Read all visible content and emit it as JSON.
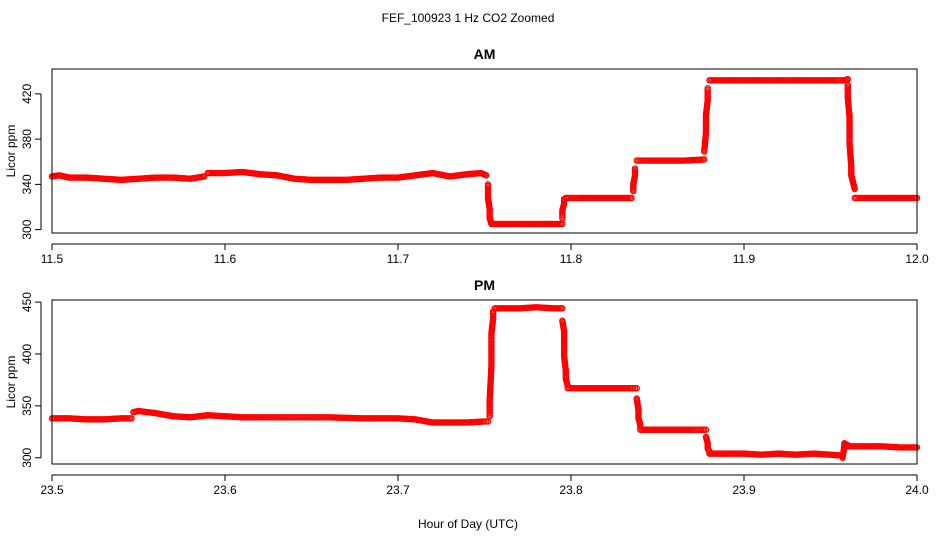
{
  "figure": {
    "title": "FEF_100923  1 Hz CO2 Zoomed",
    "xlabel": "Hour of Day (UTC)"
  },
  "colors": {
    "points": "#ff0000",
    "axis": "#000000"
  },
  "chart_data": [
    {
      "type": "scatter",
      "title": "AM",
      "ylabel": "Licor ppm",
      "xlim": [
        11.5,
        12.0
      ],
      "ylim": [
        297,
        442
      ],
      "x_ticks": [
        11.5,
        11.6,
        11.7,
        11.8,
        11.9,
        12.0
      ],
      "x_tick_labels": [
        "11.5",
        "11.6",
        "11.7",
        "11.8",
        "11.9",
        "12.0"
      ],
      "y_ticks": [
        300,
        340,
        380,
        420
      ],
      "y_tick_labels": [
        "300",
        "340",
        "380",
        "420"
      ],
      "marker": "open-circle",
      "segments": [
        {
          "x": [
            11.5,
            11.504,
            11.51,
            11.52,
            11.53,
            11.54,
            11.55,
            11.56,
            11.57,
            11.58,
            11.588
          ],
          "y": [
            347,
            348,
            346,
            346,
            345,
            344,
            345,
            346,
            346,
            345,
            347
          ]
        },
        {
          "x": [
            11.59,
            11.6,
            11.61,
            11.62,
            11.63,
            11.64,
            11.65,
            11.66,
            11.67,
            11.68,
            11.69,
            11.7,
            11.71,
            11.72,
            11.73,
            11.74,
            11.748,
            11.751
          ],
          "y": [
            350,
            350,
            351,
            349,
            348,
            345,
            344,
            344,
            344,
            345,
            346,
            346,
            348,
            350,
            347,
            349,
            350,
            348
          ]
        },
        {
          "x": [
            11.752,
            11.752,
            11.753,
            11.753,
            11.754
          ],
          "y": [
            340,
            328,
            318,
            310,
            305
          ]
        },
        {
          "x": [
            11.755,
            11.76,
            11.77,
            11.78,
            11.79,
            11.795
          ],
          "y": [
            305,
            305,
            305,
            305,
            305,
            305
          ]
        },
        {
          "x": [
            11.795,
            11.795,
            11.796,
            11.796
          ],
          "y": [
            310,
            317,
            323,
            327
          ]
        },
        {
          "x": [
            11.797,
            11.805,
            11.815,
            11.825,
            11.835
          ],
          "y": [
            328,
            328,
            328,
            328,
            328
          ]
        },
        {
          "x": [
            11.836,
            11.836,
            11.837,
            11.837
          ],
          "y": [
            334,
            340,
            348,
            354
          ]
        },
        {
          "x": [
            11.838,
            11.845,
            11.855,
            11.865,
            11.877
          ],
          "y": [
            361,
            361,
            361,
            361,
            362
          ]
        },
        {
          "x": [
            11.877,
            11.878,
            11.878,
            11.879,
            11.879
          ],
          "y": [
            369,
            385,
            401,
            414,
            425
          ]
        },
        {
          "x": [
            11.88,
            11.89,
            11.9,
            11.91,
            11.92,
            11.93,
            11.94,
            11.95,
            11.958,
            11.96
          ],
          "y": [
            432,
            432,
            432,
            432,
            432,
            432,
            432,
            432,
            432,
            433
          ]
        },
        {
          "x": [
            11.96,
            11.96,
            11.961,
            11.961,
            11.962,
            11.962,
            11.963,
            11.964
          ],
          "y": [
            428,
            416,
            400,
            376,
            356,
            348,
            342,
            336
          ]
        },
        {
          "x": [
            11.964,
            11.97,
            11.98,
            11.99,
            12.0
          ],
          "y": [
            328,
            328,
            328,
            328,
            328
          ]
        }
      ]
    },
    {
      "type": "scatter",
      "title": "PM",
      "ylabel": "Licor ppm",
      "xlim": [
        23.5,
        24.0
      ],
      "ylim": [
        294,
        452
      ],
      "x_ticks": [
        23.5,
        23.6,
        23.7,
        23.8,
        23.9,
        24.0
      ],
      "x_tick_labels": [
        "23.5",
        "23.6",
        "23.7",
        "23.8",
        "23.9",
        "24.0"
      ],
      "y_ticks": [
        300,
        350,
        400,
        450
      ],
      "y_tick_labels": [
        "300",
        "350",
        "400",
        "450"
      ],
      "marker": "open-circle",
      "segments": [
        {
          "x": [
            23.5,
            23.51,
            23.52,
            23.53,
            23.54,
            23.546
          ],
          "y": [
            338,
            338,
            337,
            337,
            338,
            338
          ]
        },
        {
          "x": [
            23.547,
            23.55,
            23.56,
            23.57,
            23.58,
            23.59,
            23.6,
            23.61,
            23.62,
            23.64,
            23.66,
            23.68,
            23.7,
            23.71,
            23.72,
            23.73,
            23.74,
            23.75,
            23.752
          ],
          "y": [
            344,
            345,
            343,
            340,
            339,
            341,
            340,
            339,
            339,
            339,
            339,
            338,
            338,
            337,
            334,
            334,
            334,
            335,
            335
          ]
        },
        {
          "x": [
            23.753,
            23.753,
            23.754,
            23.754,
            23.755,
            23.755
          ],
          "y": [
            340,
            356,
            388,
            420,
            434,
            441
          ]
        },
        {
          "x": [
            23.756,
            23.76,
            23.77,
            23.78,
            23.79,
            23.795
          ],
          "y": [
            444,
            444,
            444,
            445,
            444,
            444
          ]
        },
        {
          "x": [
            23.795,
            23.796,
            23.796,
            23.797,
            23.797,
            23.798
          ],
          "y": [
            432,
            422,
            398,
            384,
            376,
            370
          ]
        },
        {
          "x": [
            23.798,
            23.805,
            23.815,
            23.825,
            23.835,
            23.838
          ],
          "y": [
            367,
            367,
            367,
            367,
            367,
            367
          ]
        },
        {
          "x": [
            23.838,
            23.839,
            23.839,
            23.84,
            23.84
          ],
          "y": [
            357,
            346,
            338,
            332,
            330
          ]
        },
        {
          "x": [
            23.84,
            23.85,
            23.86,
            23.87,
            23.878
          ],
          "y": [
            327,
            327,
            327,
            327,
            327
          ]
        },
        {
          "x": [
            23.878,
            23.879,
            23.879,
            23.88
          ],
          "y": [
            320,
            314,
            309,
            306
          ]
        },
        {
          "x": [
            23.88,
            23.89,
            23.9,
            23.91,
            23.92,
            23.93,
            23.94,
            23.95,
            23.957
          ],
          "y": [
            304,
            304,
            304,
            303,
            304,
            303,
            304,
            303,
            302
          ]
        },
        {
          "x": [
            23.957,
            23.958,
            23.958,
            23.959,
            23.96
          ],
          "y": [
            300,
            311,
            314,
            313,
            312
          ]
        },
        {
          "x": [
            23.96,
            23.97,
            23.98,
            23.99,
            24.0
          ],
          "y": [
            311,
            311,
            311,
            310,
            310
          ]
        }
      ]
    }
  ]
}
